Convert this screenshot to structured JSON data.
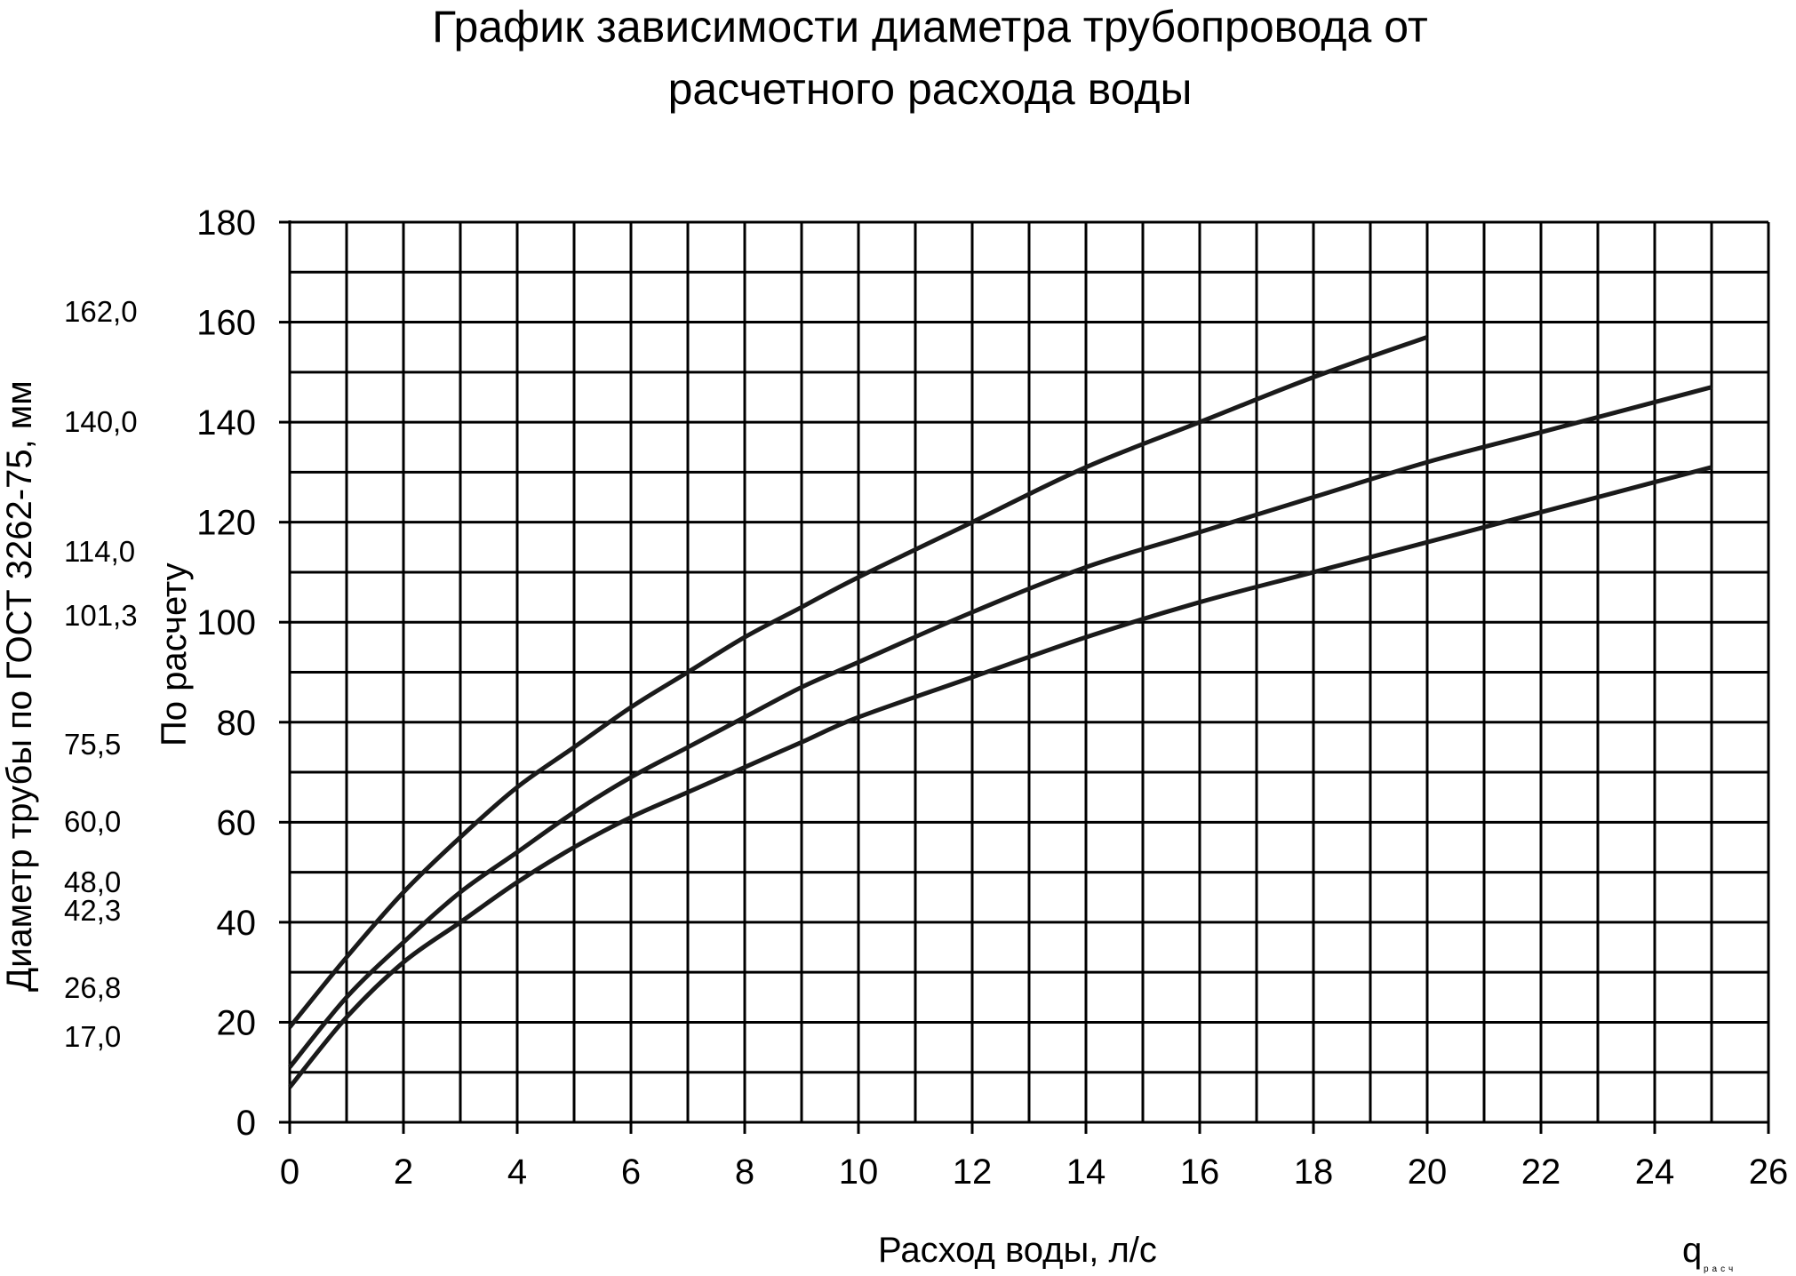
{
  "chart_data": {
    "type": "line",
    "title": [
      "График зависимости диаметра трубопровода от",
      "расчетного расхода воды"
    ],
    "xlabel": "Расход воды, л/с",
    "xlabel_q": "q",
    "xlabel_q_sub": "расч",
    "ylabel": "По расчету",
    "ylabel_outer": "Диаметр трубы по ГОСТ 3262-75, мм",
    "xlim": [
      0,
      26
    ],
    "ylim": [
      0,
      180
    ],
    "x_ticks": [
      "0",
      "2",
      "4",
      "6",
      "8",
      "10",
      "12",
      "14",
      "16",
      "18",
      "20",
      "22",
      "24",
      "26"
    ],
    "y_ticks": [
      "0",
      "20",
      "40",
      "60",
      "80",
      "100",
      "120",
      "140",
      "160",
      "180"
    ],
    "x_grid_step": 1,
    "y_grid_step": 10,
    "grid": true,
    "gost_diameters": [
      {
        "label": "162,0",
        "value": 162.0
      },
      {
        "label": "140,0",
        "value": 140.0
      },
      {
        "label": "114,0",
        "value": 114.0
      },
      {
        "label": "101,3",
        "value": 101.3
      },
      {
        "label": "75,5",
        "value": 75.5
      },
      {
        "label": "60,0",
        "value": 60.0
      },
      {
        "label": "48,0",
        "value": 48.0
      },
      {
        "label": "42,3",
        "value": 42.3
      },
      {
        "label": "26,8",
        "value": 26.8
      },
      {
        "label": "17,0",
        "value": 17.0
      }
    ],
    "series": [
      {
        "x": [
          0,
          1,
          2,
          3,
          4,
          5,
          6,
          7,
          8,
          9,
          10,
          12,
          14,
          16,
          18,
          20
        ],
        "y": [
          19,
          33,
          46,
          57,
          67,
          75,
          83,
          90,
          97,
          103,
          109,
          120,
          131,
          140,
          149,
          157
        ]
      },
      {
        "x": [
          0,
          1,
          2,
          3,
          4,
          5,
          6,
          7,
          8,
          9,
          10,
          12,
          14,
          16,
          18,
          20,
          22,
          24,
          25
        ],
        "y": [
          11,
          25,
          36,
          46,
          54,
          62,
          69,
          75,
          81,
          87,
          92,
          102,
          111,
          118,
          125,
          132,
          138,
          144,
          147
        ]
      },
      {
        "x": [
          0,
          1,
          2,
          3,
          4,
          5,
          6,
          7,
          8,
          9,
          10,
          12,
          14,
          16,
          18,
          20,
          22,
          24,
          25
        ],
        "y": [
          7,
          21,
          32,
          40,
          48,
          55,
          61,
          66,
          71,
          76,
          81,
          89,
          97,
          104,
          110,
          116,
          122,
          128,
          131
        ]
      }
    ],
    "line_color": "#1a1a1a",
    "grid_color": "#000000"
  }
}
